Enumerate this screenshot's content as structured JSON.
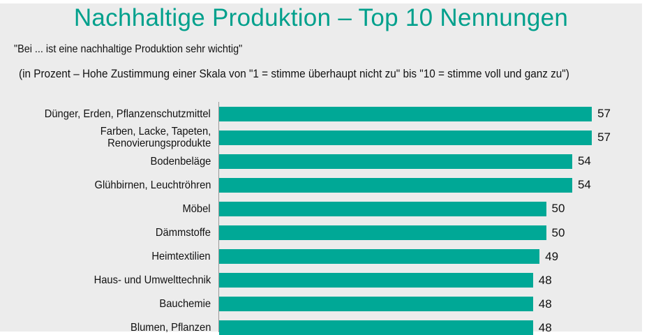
{
  "chart_data": {
    "type": "bar",
    "orientation": "horizontal",
    "title": "Nachhaltige Produktion – Top 10 Nennungen",
    "subtitle": "\"Bei ... ist eine nachhaltige Produktion sehr wichtig\"",
    "note": "(in Prozent – Hohe Zustimmung einer Skala von \"1 = stimme überhaupt nicht zu\" bis \"10  = stimme voll und ganz zu\")",
    "categories": [
      "Dünger, Erden, Pflanzenschutzmittel",
      "Farben, Lacke, Tapeten,\nRenovierungsprodukte",
      "Bodenbeläge",
      "Glühbirnen, Leuchtröhren",
      "Möbel",
      "Dämmstoffe",
      "Heimtextilien",
      "Haus- und Umwelttechnik",
      "Bauchemie",
      "Blumen, Pflanzen"
    ],
    "values": [
      57,
      57,
      54,
      54,
      50,
      50,
      49,
      48,
      48,
      48
    ],
    "bar_color": "#00a896",
    "title_color": "#00a08c",
    "grid": false
  }
}
